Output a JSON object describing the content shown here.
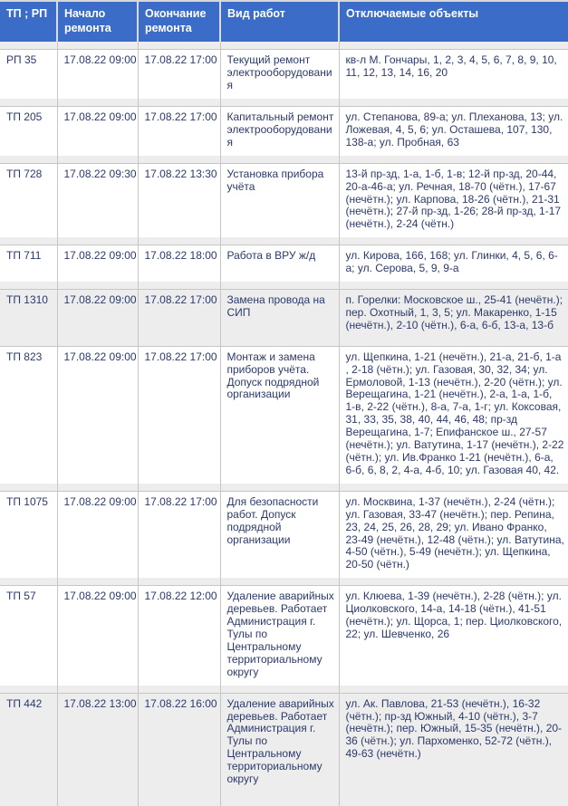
{
  "colors": {
    "header_bg": "#3b6cc7",
    "header_text": "#ffffff",
    "body_text": "#2b3a6a",
    "border": "#c6c6c6",
    "shaded_row_bg": "#ededed"
  },
  "table": {
    "headers": [
      "ТП ; РП",
      "Начало ремонта",
      "Окончание ремонта",
      "Вид работ",
      "Отключаемые объекты"
    ],
    "rows": [
      {
        "id": "РП 35",
        "start": "17.08.22 09:00",
        "end": "17.08.22 17:00",
        "work": "Текущий ремонт электрооборудования",
        "objects": "кв-л М. Гончары, 1, 2, 3, 4, 5, 6, 7, 8, 9, 10, 11, 12, 13, 14, 16, 20",
        "shaded": false
      },
      {
        "id": "ТП 205",
        "start": "17.08.22 09:00",
        "end": "17.08.22 17:00",
        "work": "Капитальный ремонт электрооборудования",
        "objects": "ул. Степанова, 89-а; ул. Плеханова, 13; ул. Ложевая, 4, 5, 6; ул. Осташева, 107, 130, 138-а; ул. Пробная, 63",
        "shaded": false
      },
      {
        "id": "ТП 728",
        "start": "17.08.22 09:30",
        "end": "17.08.22 13:30",
        "work": "Установка прибора учёта",
        "objects": "13-й пр-зд, 1-а, 1-б, 1-в; 12-й пр-зд, 20-44, 20-а-46-а; ул. Речная, 18-70 (чётн.), 17-67 (нечётн.); ул. Карпова, 18-26 (чётн.), 21-31 (нечётн.); 27-й пр-зд, 1-26; 28-й пр-зд, 1-17 (нечётн.), 2-24 (чётн.)",
        "shaded": false
      },
      {
        "id": "ТП 711",
        "start": "17.08.22 09:00",
        "end": "17.08.22 18:00",
        "work": "Работа в ВРУ ж/д",
        "objects": "ул. Кирова, 166, 168; ул. Глинки, 4, 5, 6, 6-а; ул. Серова, 5, 9, 9-а",
        "shaded": false
      },
      {
        "id": "ТП 1310",
        "start": "17.08.22 09:00",
        "end": "17.08.22 17:00",
        "work": "Замена провода на СИП",
        "objects": "п. Горелки: Московское ш., 25-41 (нечётн.); пер. Охотный, 1, 3, 5; ул. Макаренко, 1-15 (нечётн.), 2-10 (чётн.), 6-а, 6-б, 13-а, 13-б",
        "shaded": true
      },
      {
        "id": "ТП 823",
        "start": "17.08.22 09:00",
        "end": "17.08.22 17:00",
        "work": "Монтаж и замена приборов учёта. Допуск подрядной организации",
        "objects": "ул. Щепкина, 1-21 (нечётн.), 21-а, 21-б, 1-а , 2-18 (чётн.); ул. Газовая, 30, 32, 34; ул. Ермоловой, 1-13 (нечётн.), 2-20 (чётн.); ул. Верещагина, 1-21 (нечётн.), 2-а, 1-а, 1-б, 1-в, 2-22 (чётн.), 8-а, 7-а, 1-г; ул. Коксовая, 31, 33, 35, 38, 40, 44, 46, 48; пр-зд Верещагина, 1-7; Епифанское ш., 27-57 (нечётн.); ул. Ватутина, 1-17 (нечётн.), 2-22 (чётн.); ул. Ив.Франко 1-21 (нечётн.), 6-а, 6-б, 6, 8, 2, 4-а, 4-б, 10; ул. Газовая 40, 42.",
        "shaded": false
      },
      {
        "id": "ТП 1075",
        "start": "17.08.22 09:00",
        "end": "17.08.22 17:00",
        "work": "Для безопасности работ. Допуск подрядной организации",
        "objects": "ул. Москвина, 1-37 (нечётн.), 2-24 (чётн.); ул. Газовая, 33-47 (нечётн.); пер. Репина, 23, 24, 25, 26, 28, 29; ул. Ивано Франко, 23-49 (нечётн.), 12-48 (чётн.); ул. Ватутина, 4-50 (чётн.), 5-49 (нечётн.); ул. Щепкина, 20-50 (чётн.)",
        "shaded": false
      },
      {
        "id": "ТП 57",
        "start": "17.08.22 09:00",
        "end": "17.08.22 12:00",
        "work": "Удаление аварийных деревьев. Работает Администрация г. Тулы по Центральному территориальному округу",
        "objects": "ул. Клюева, 1-39 (нечётн.), 2-28 (чётн.); ул. Циолковского, 14-а, 14-18 (чётн.), 41-51 (нечётн.); ул. Щорса, 1; пер. Циолковского, 22; ул. Шевченко, 26",
        "shaded": false
      },
      {
        "id": "ТП 442",
        "start": "17.08.22 13:00",
        "end": "17.08.22 16:00",
        "work": "Удаление аварийных деревьев. Работает Администрация г. Тулы по Центральному территориальному округу",
        "objects": "ул. Ак. Павлова, 21-53 (нечётн.), 16-32 (чётн.); пр-зд Южный, 4-10 (чётн.), 3-7 (нечётн.); пер. Южный, 15-35 (нечётн.), 20-36 (чётн.); ул. Пархоменко, 52-72 (чётн.), 49-63 (нечётн.)",
        "shaded": true
      }
    ]
  }
}
